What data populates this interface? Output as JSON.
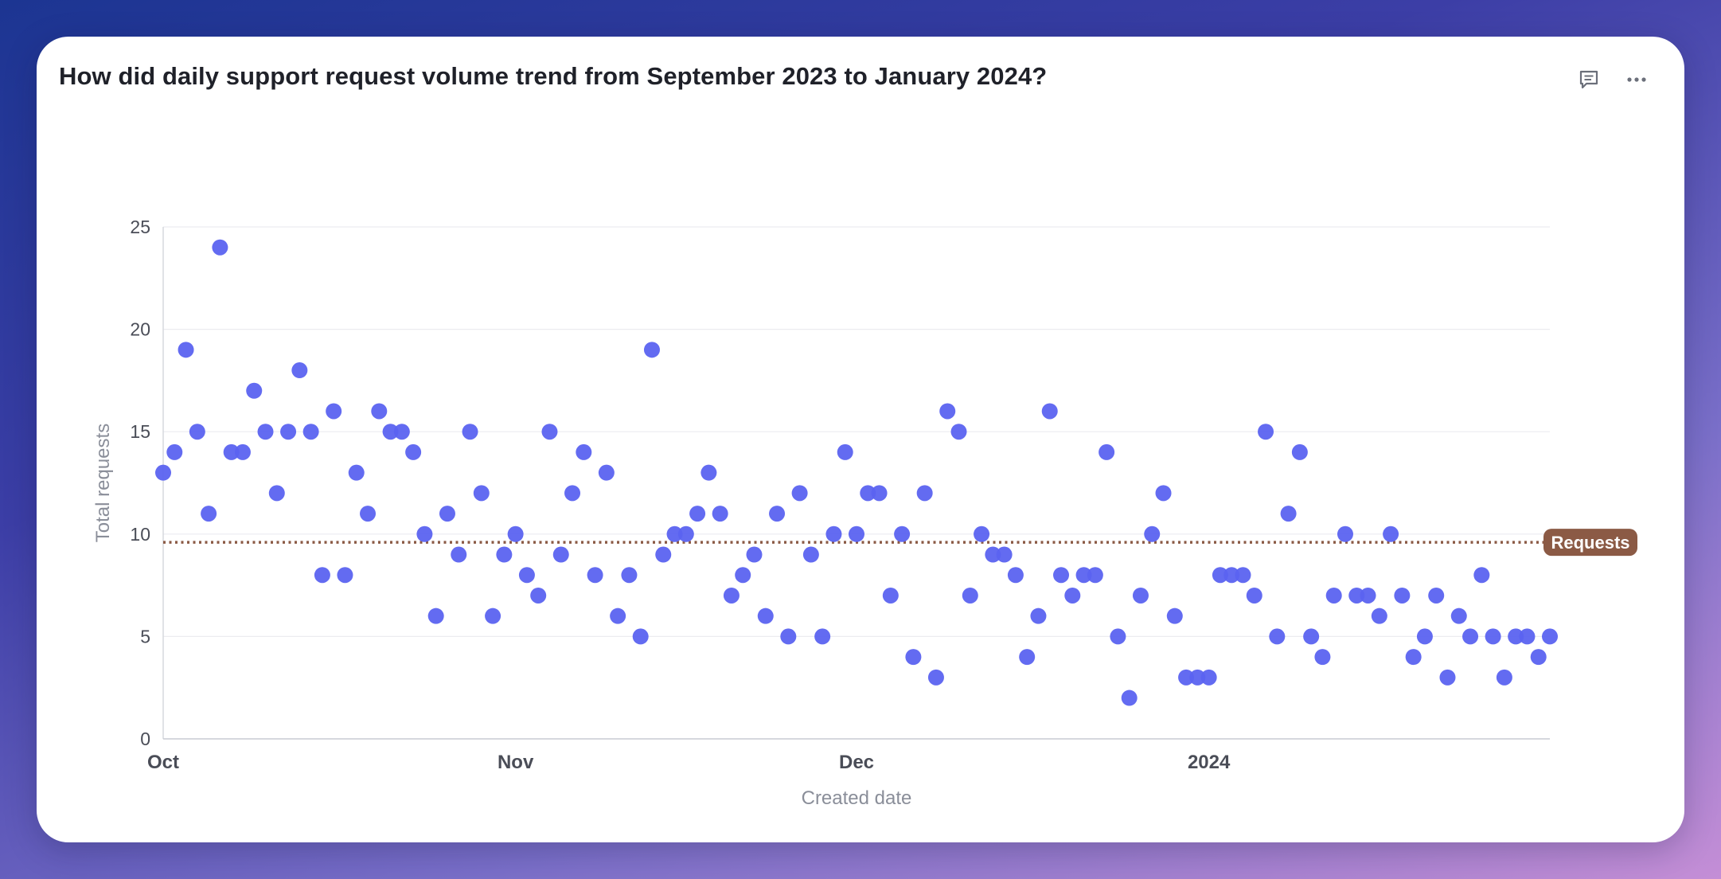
{
  "card": {
    "title": "How did daily support request volume trend from September 2023 to January 2024?"
  },
  "actions": [
    {
      "icon": "comment-icon"
    },
    {
      "icon": "more-icon"
    }
  ],
  "chart_data": {
    "type": "scatter",
    "xlabel": "Created date",
    "ylabel": "Total requests",
    "ylim": [
      0,
      25
    ],
    "yticks": [
      0,
      5,
      10,
      15,
      20,
      25
    ],
    "xlim": [
      "2023-10-01",
      "2024-01-31"
    ],
    "xticks": [
      {
        "date": "2023-10-01",
        "label": "Oct"
      },
      {
        "date": "2023-11-01",
        "label": "Nov"
      },
      {
        "date": "2023-12-01",
        "label": "Dec"
      },
      {
        "date": "2024-01-01",
        "label": "2024"
      }
    ],
    "grid": true,
    "point_color": "#5b63f0",
    "reference_line": {
      "label": "Requests",
      "value": 9.6,
      "color": "#8b5a45"
    },
    "series": [
      {
        "x": [
          "2023-10-01",
          "2023-10-02",
          "2023-10-03",
          "2023-10-04",
          "2023-10-05",
          "2023-10-06",
          "2023-10-07",
          "2023-10-08",
          "2023-10-09",
          "2023-10-10",
          "2023-10-11",
          "2023-10-12",
          "2023-10-13",
          "2023-10-14",
          "2023-10-15",
          "2023-10-16",
          "2023-10-17",
          "2023-10-18",
          "2023-10-19",
          "2023-10-20",
          "2023-10-21",
          "2023-10-22",
          "2023-10-23",
          "2023-10-24",
          "2023-10-25",
          "2023-10-26",
          "2023-10-27",
          "2023-10-28",
          "2023-10-29",
          "2023-10-30",
          "2023-10-31",
          "2023-11-01",
          "2023-11-02",
          "2023-11-03",
          "2023-11-04",
          "2023-11-05",
          "2023-11-06",
          "2023-11-07",
          "2023-11-08",
          "2023-11-09",
          "2023-11-10",
          "2023-11-11",
          "2023-11-12",
          "2023-11-13",
          "2023-11-14",
          "2023-11-15",
          "2023-11-16",
          "2023-11-17",
          "2023-11-18",
          "2023-11-19",
          "2023-11-20",
          "2023-11-21",
          "2023-11-22",
          "2023-11-23",
          "2023-11-24",
          "2023-11-25",
          "2023-11-26",
          "2023-11-27",
          "2023-11-28",
          "2023-11-29",
          "2023-11-30",
          "2023-12-01",
          "2023-12-02",
          "2023-12-03",
          "2023-12-04",
          "2023-12-05",
          "2023-12-06",
          "2023-12-07",
          "2023-12-08",
          "2023-12-09",
          "2023-12-10",
          "2023-12-11",
          "2023-12-12",
          "2023-12-13",
          "2023-12-14",
          "2023-12-15",
          "2023-12-16",
          "2023-12-17",
          "2023-12-18",
          "2023-12-19",
          "2023-12-20",
          "2023-12-21",
          "2023-12-22",
          "2023-12-23",
          "2023-12-24",
          "2023-12-25",
          "2023-12-26",
          "2023-12-27",
          "2023-12-28",
          "2023-12-29",
          "2023-12-30",
          "2023-12-31",
          "2024-01-01",
          "2024-01-02",
          "2024-01-03",
          "2024-01-04",
          "2024-01-05",
          "2024-01-06",
          "2024-01-07",
          "2024-01-08",
          "2024-01-09",
          "2024-01-10",
          "2024-01-11",
          "2024-01-12",
          "2024-01-13",
          "2024-01-14",
          "2024-01-15",
          "2024-01-16",
          "2024-01-17",
          "2024-01-18",
          "2024-01-19",
          "2024-01-20",
          "2024-01-21",
          "2024-01-22",
          "2024-01-23",
          "2024-01-24",
          "2024-01-25",
          "2024-01-26",
          "2024-01-27",
          "2024-01-28",
          "2024-01-29",
          "2024-01-30",
          "2024-01-31"
        ],
        "y": [
          13,
          14,
          19,
          15,
          11,
          24,
          14,
          14,
          17,
          15,
          12,
          15,
          18,
          15,
          8,
          16,
          8,
          13,
          11,
          16,
          15,
          15,
          14,
          10,
          6,
          11,
          9,
          15,
          12,
          6,
          9,
          10,
          8,
          7,
          15,
          9,
          12,
          14,
          8,
          13,
          6,
          8,
          5,
          19,
          9,
          10,
          10,
          11,
          13,
          11,
          7,
          8,
          9,
          6,
          11,
          5,
          12,
          9,
          5,
          10,
          14,
          10,
          12,
          12,
          7,
          10,
          4,
          12,
          3,
          16,
          15,
          7,
          10,
          9,
          9,
          8,
          4,
          6,
          16,
          8,
          7,
          8,
          8,
          14,
          5,
          2,
          7,
          10,
          12,
          6,
          3,
          3,
          3,
          8,
          8,
          8,
          7,
          15,
          5,
          11,
          14,
          5,
          4,
          7,
          10,
          7,
          7,
          6,
          10,
          7,
          4,
          5,
          7,
          3,
          6,
          5,
          8,
          5,
          3,
          5,
          5,
          4,
          5
        ]
      }
    ]
  }
}
